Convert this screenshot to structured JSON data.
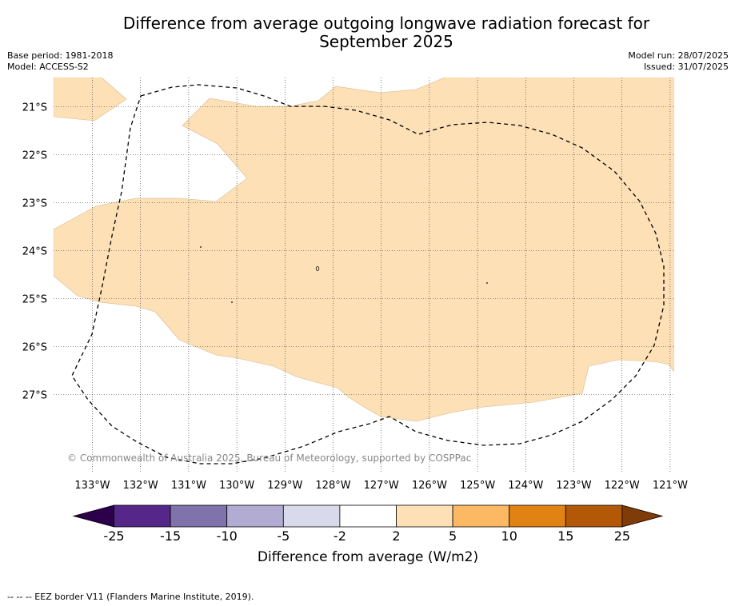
{
  "header": {
    "title_line1": "Difference from average outgoing longwave radiation forecast for",
    "title_line2": "September 2025",
    "base_period": "Base period: 1981-2018",
    "model": "Model: ACCESS-S2",
    "model_run": "Model run: 28/07/2025",
    "issued": "Issued: 31/07/2025"
  },
  "map": {
    "lon_labels": [
      "133°W",
      "132°W",
      "131°W",
      "130°W",
      "129°W",
      "128°W",
      "127°W",
      "126°W",
      "125°W",
      "124°W",
      "123°W",
      "122°W",
      "121°W"
    ],
    "lat_labels": [
      "21°S",
      "22°S",
      "23°S",
      "24°S",
      "25°S",
      "26°S",
      "27°S"
    ],
    "watermark": "© Commonwealth of Australia 2025, Bureau of Meteorology, supported by COSPPac",
    "region_category": "2 to 5",
    "region_color": "#fde0b6",
    "eez_border_style": "dashed black"
  },
  "colorbar": {
    "title": "Difference from average (W/m2)",
    "tick_labels": [
      "-25",
      "-15",
      "-10",
      "-5",
      "-2",
      "2",
      "5",
      "10",
      "15",
      "25"
    ],
    "colors": [
      "#2d004b",
      "#542788",
      "#8073ac",
      "#b2abd2",
      "#d8daeb",
      "#ffffff",
      "#fee0b6",
      "#fdb863",
      "#e08214",
      "#b35806",
      "#7f3b08"
    ],
    "extend": "both"
  },
  "footer": {
    "legend_text": "--  --  -- EEZ border V11 (Flanders Marine Institute, 2019)."
  }
}
